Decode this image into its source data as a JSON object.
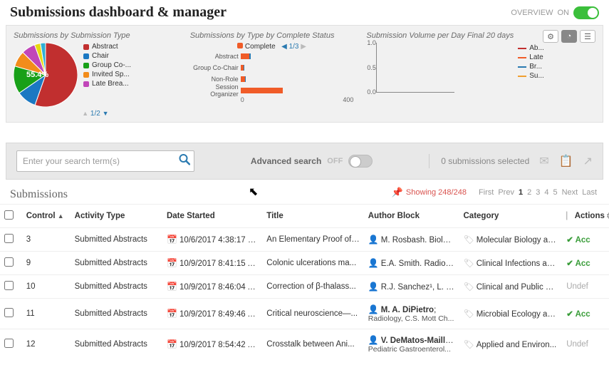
{
  "header": {
    "title": "Submissions dashboard & manager",
    "overview_label": "OVERVIEW",
    "overview_state": "ON"
  },
  "charts": {
    "pie": {
      "title": "Submissions by Submission Type",
      "center_label": "55.4%",
      "slices": [
        {
          "label": "Abstract",
          "value": 55.4,
          "color": "#c12f2f"
        },
        {
          "label": "Chair",
          "value": 10,
          "color": "#1b78c2"
        },
        {
          "label": "Group Co-...",
          "value": 14,
          "color": "#18a018"
        },
        {
          "label": "Invited Sp...",
          "value": 8,
          "color": "#f28c1b"
        },
        {
          "label": "Late Brea...",
          "value": 7,
          "color": "#c146b9"
        },
        {
          "label": "",
          "value": 3,
          "color": "#e7d813"
        },
        {
          "label": "",
          "value": 2.6,
          "color": "#2fb0d6"
        }
      ],
      "pager": "1/2"
    },
    "bar": {
      "title": "Submissions by Type by Complete Status",
      "series_label": "Complete",
      "pager": "1/3",
      "xmax": 400,
      "bar_color": "#f05c28",
      "second_color": "#2a7ab0",
      "categories": [
        {
          "label": "Abstract",
          "v1": 30,
          "v2": 5
        },
        {
          "label": "Group Co-Chair",
          "v1": 10,
          "v2": 3
        },
        {
          "label": "Non-Role",
          "v1": 15,
          "v2": 4
        },
        {
          "label": "Session Organizer",
          "v1": 150,
          "v2": 0
        }
      ],
      "xticks": [
        "0",
        "400"
      ]
    },
    "line": {
      "title": "Submission Volume per Day Final 20 days",
      "ylim": [
        0,
        1.0
      ],
      "yticks": [
        "1.0",
        "0.5",
        "0.0"
      ],
      "series": [
        {
          "label": "Ab...",
          "color": "#c12f2f"
        },
        {
          "label": "Late",
          "color": "#f05c28"
        },
        {
          "label": "Br...",
          "color": "#2a7ab0"
        },
        {
          "label": "Su...",
          "color": "#f0a030"
        }
      ]
    }
  },
  "search": {
    "placeholder": "Enter your search term(s)",
    "advanced_label": "Advanced search",
    "advanced_state": "OFF",
    "selected_text": "0 submissions selected"
  },
  "table": {
    "section_title": "Submissions",
    "showing": "Showing 248/248",
    "pages": [
      "First",
      "Prev",
      "1",
      "2",
      "3",
      "4",
      "5",
      "Next",
      "Last"
    ],
    "active_page": "1",
    "columns": {
      "control": "Control",
      "activity": "Activity Type",
      "date": "Date Started",
      "title": "Title",
      "author": "Author Block",
      "category": "Category",
      "actions": "Actions"
    },
    "rows": [
      {
        "control": "3",
        "activity": "Submitted Abstracts",
        "date": "10/6/2017 4:38:17 P...",
        "title": "An Elementary Proof of ...",
        "author": "M. Rosbash. Biology,...",
        "author_strong": "",
        "author_sub": "",
        "category": "Molecular Biology an...",
        "action": "Acc",
        "action_class": "accept"
      },
      {
        "control": "9",
        "activity": "Submitted Abstracts",
        "date": "10/9/2017 8:41:15 A...",
        "title": "Colonic ulcerations ma...",
        "author": "E.A. Smith. Radiolog...",
        "author_strong": "",
        "author_sub": "",
        "category": "Clinical Infections an...",
        "action": "Acc",
        "action_class": "accept"
      },
      {
        "control": "10",
        "activity": "Submitted Abstracts",
        "date": "10/9/2017 8:46:04 A...",
        "title": "Correction of β-thalass...",
        "author": "R.J. Sanchez¹, L. Ny...",
        "author_strong": "",
        "author_sub": "",
        "category": "Clinical and Public H...",
        "action": "Undef",
        "action_class": "undef"
      },
      {
        "control": "11",
        "activity": "Submitted Abstracts",
        "date": "10/9/2017 8:49:46 A...",
        "title": "Critical neuroscience—...",
        "author": "",
        "author_strong": "M. A. DiPietro",
        "author_sub": "Radiology, C.S. Mott Ch...",
        "category": "Microbial Ecology an...",
        "action": "Acc",
        "action_class": "accept"
      },
      {
        "control": "12",
        "activity": "Submitted Abstracts",
        "date": "10/9/2017 8:54:42 A...",
        "title": "Crosstalk between Ani...",
        "author": "",
        "author_strong": "V. DeMatos-Maillard",
        "author_sub": "Pediatric Gastroenterol...",
        "category": "Applied and Environ...",
        "action": "Undef",
        "action_class": "undef"
      }
    ]
  }
}
